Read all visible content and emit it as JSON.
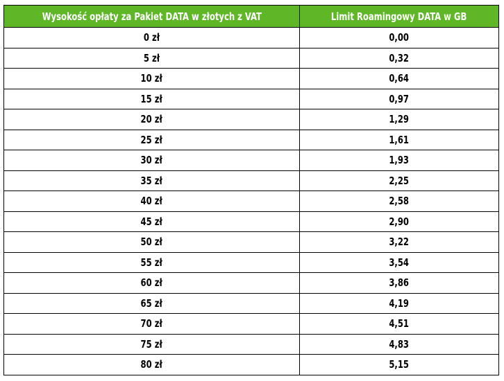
{
  "colors": {
    "header_background": "#5fb728",
    "header_text": "#ffffff",
    "border": "#000000",
    "body_text": "#000000"
  },
  "table": {
    "headers": [
      "Wysokość opłaty za Pakiet DATA w złotych z VAT",
      "Limit Roamingowy DATA w GB"
    ],
    "rows": [
      [
        "0 zł",
        "0,00"
      ],
      [
        "5 zł",
        "0,32"
      ],
      [
        "10 zł",
        "0,64"
      ],
      [
        "15 zł",
        "0,97"
      ],
      [
        "20 zł",
        "1,29"
      ],
      [
        "25 zł",
        "1,61"
      ],
      [
        "30 zł",
        "1,93"
      ],
      [
        "35 zł",
        "2,25"
      ],
      [
        "40 zł",
        "2,58"
      ],
      [
        "45 zł",
        "2,90"
      ],
      [
        "50 zł",
        "3,22"
      ],
      [
        "55 zł",
        "3,54"
      ],
      [
        "60 zł",
        "3,86"
      ],
      [
        "65 zł",
        "4,19"
      ],
      [
        "70 zł",
        "4,51"
      ],
      [
        "75 zł",
        "4,83"
      ],
      [
        "80 zł",
        "5,15"
      ]
    ]
  }
}
